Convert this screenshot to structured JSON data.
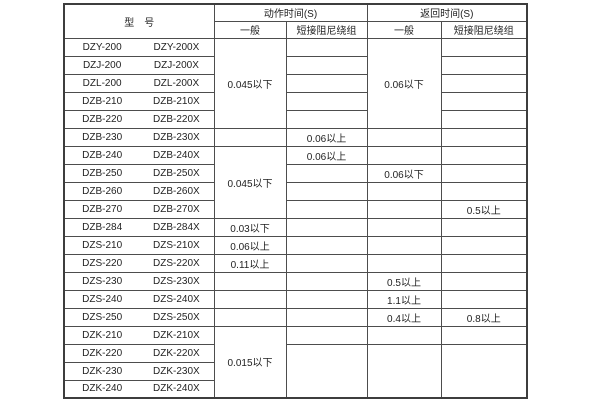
{
  "table": {
    "border_color": "#4d4d4d",
    "text_color": "#1f1f1f",
    "header": {
      "model_label": "型　号",
      "groups": [
        {
          "label": "动作时间(S)",
          "subs": [
            "一般",
            "短接阻尼绕组"
          ]
        },
        {
          "label": "返回时间(S)",
          "subs": [
            "一般",
            "短接阻尼绕组"
          ]
        }
      ]
    },
    "models": [
      [
        "DZY-200",
        "DZY-200X"
      ],
      [
        "DZJ-200",
        "DZJ-200X"
      ],
      [
        "DZL-200",
        "DZL-200X"
      ],
      [
        "DZB-210",
        "DZB-210X"
      ],
      [
        "DZB-220",
        "DZB-220X"
      ],
      [
        "DZB-230",
        "DZB-230X"
      ],
      [
        "DZB-240",
        "DZB-240X"
      ],
      [
        "DZB-250",
        "DZB-250X"
      ],
      [
        "DZB-260",
        "DZB-260X"
      ],
      [
        "DZB-270",
        "DZB-270X"
      ],
      [
        "DZB-284",
        "DZB-284X"
      ],
      [
        "DZS-210",
        "DZS-210X"
      ],
      [
        "DZS-220",
        "DZS-220X"
      ],
      [
        "DZS-230",
        "DZS-230X"
      ],
      [
        "DZS-240",
        "DZS-240X"
      ],
      [
        "DZS-250",
        "DZS-250X"
      ],
      [
        "DZK-210",
        "DZK-210X"
      ],
      [
        "DZK-220",
        "DZK-220X"
      ],
      [
        "DZK-230",
        "DZK-230X"
      ],
      [
        "DZK-240",
        "DZK-240X"
      ]
    ],
    "columns": {
      "action_general": [
        {
          "row": 1,
          "span": 5,
          "text": "0.045以下"
        },
        {
          "row": 6,
          "span": 1,
          "text": ""
        },
        {
          "row": 7,
          "span": 4,
          "text": "0.045以下"
        },
        {
          "row": 11,
          "span": 1,
          "text": "0.03以下"
        },
        {
          "row": 12,
          "span": 1,
          "text": "0.06以上"
        },
        {
          "row": 13,
          "span": 1,
          "text": "0.11以上"
        },
        {
          "row": 14,
          "span": 1,
          "text": ""
        },
        {
          "row": 15,
          "span": 1,
          "text": ""
        },
        {
          "row": 16,
          "span": 1,
          "text": ""
        },
        {
          "row": 17,
          "span": 4,
          "text": "0.015以下"
        }
      ],
      "action_damping": [
        {
          "row": 1,
          "span": 1,
          "text": ""
        },
        {
          "row": 2,
          "span": 1,
          "text": ""
        },
        {
          "row": 3,
          "span": 1,
          "text": ""
        },
        {
          "row": 4,
          "span": 1,
          "text": ""
        },
        {
          "row": 5,
          "span": 1,
          "text": ""
        },
        {
          "row": 6,
          "span": 1,
          "text": "0.06以上"
        },
        {
          "row": 7,
          "span": 1,
          "text": "0.06以上"
        },
        {
          "row": 8,
          "span": 1,
          "text": ""
        },
        {
          "row": 9,
          "span": 1,
          "text": ""
        },
        {
          "row": 10,
          "span": 1,
          "text": ""
        },
        {
          "row": 11,
          "span": 1,
          "text": ""
        },
        {
          "row": 12,
          "span": 1,
          "text": ""
        },
        {
          "row": 13,
          "span": 1,
          "text": ""
        },
        {
          "row": 14,
          "span": 1,
          "text": ""
        },
        {
          "row": 15,
          "span": 1,
          "text": ""
        },
        {
          "row": 16,
          "span": 1,
          "text": ""
        },
        {
          "row": 17,
          "span": 1,
          "text": ""
        },
        {
          "row": 18,
          "span": 3,
          "text": ""
        }
      ],
      "return_general": [
        {
          "row": 1,
          "span": 5,
          "text": "0.06以下"
        },
        {
          "row": 6,
          "span": 1,
          "text": ""
        },
        {
          "row": 7,
          "span": 1,
          "text": ""
        },
        {
          "row": 8,
          "span": 1,
          "text": "0.06以下"
        },
        {
          "row": 9,
          "span": 1,
          "text": ""
        },
        {
          "row": 10,
          "span": 1,
          "text": ""
        },
        {
          "row": 11,
          "span": 1,
          "text": ""
        },
        {
          "row": 12,
          "span": 1,
          "text": ""
        },
        {
          "row": 13,
          "span": 1,
          "text": ""
        },
        {
          "row": 14,
          "span": 1,
          "text": "0.5以上"
        },
        {
          "row": 15,
          "span": 1,
          "text": "1.1以上"
        },
        {
          "row": 16,
          "span": 1,
          "text": "0.4以上"
        },
        {
          "row": 17,
          "span": 1,
          "text": ""
        },
        {
          "row": 18,
          "span": 3,
          "text": ""
        }
      ],
      "return_damping": [
        {
          "row": 1,
          "span": 1,
          "text": ""
        },
        {
          "row": 2,
          "span": 1,
          "text": ""
        },
        {
          "row": 3,
          "span": 1,
          "text": ""
        },
        {
          "row": 4,
          "span": 1,
          "text": ""
        },
        {
          "row": 5,
          "span": 1,
          "text": ""
        },
        {
          "row": 6,
          "span": 1,
          "text": ""
        },
        {
          "row": 7,
          "span": 1,
          "text": ""
        },
        {
          "row": 8,
          "span": 1,
          "text": ""
        },
        {
          "row": 9,
          "span": 1,
          "text": ""
        },
        {
          "row": 10,
          "span": 1,
          "text": "0.5以上"
        },
        {
          "row": 11,
          "span": 1,
          "text": ""
        },
        {
          "row": 12,
          "span": 1,
          "text": ""
        },
        {
          "row": 13,
          "span": 1,
          "text": ""
        },
        {
          "row": 14,
          "span": 1,
          "text": ""
        },
        {
          "row": 15,
          "span": 1,
          "text": ""
        },
        {
          "row": 16,
          "span": 1,
          "text": "0.8以上"
        },
        {
          "row": 17,
          "span": 1,
          "text": ""
        },
        {
          "row": 18,
          "span": 3,
          "text": ""
        }
      ]
    }
  }
}
